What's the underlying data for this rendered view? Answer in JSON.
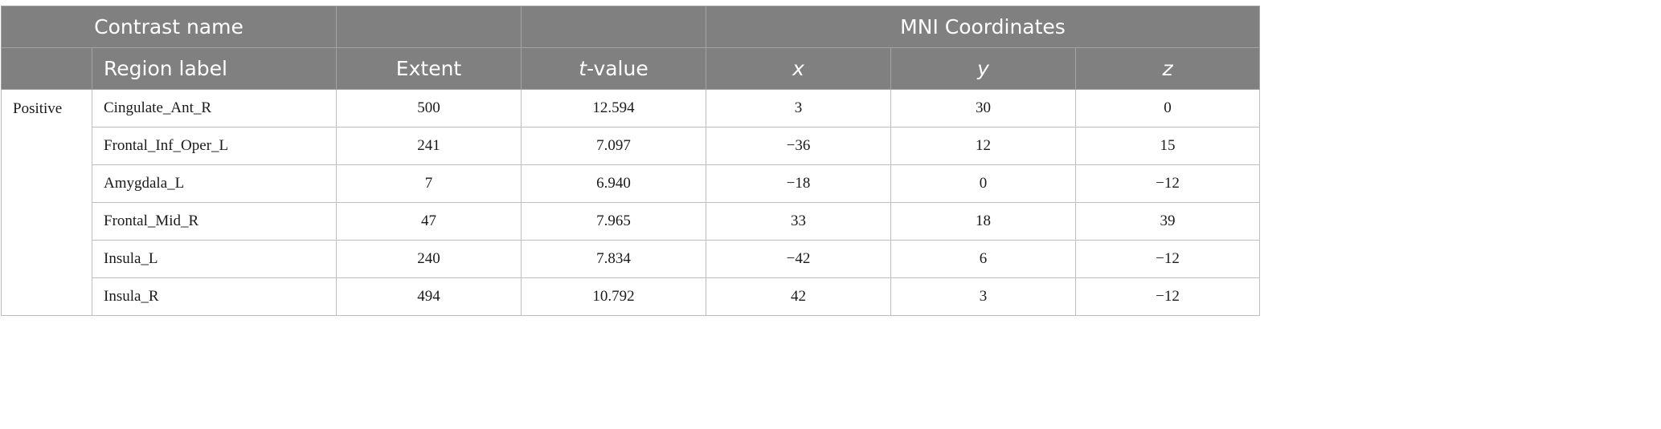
{
  "header": {
    "contrast_name": "Contrast name",
    "mni_coordinates": "MNI Coordinates",
    "region_label": "Region label",
    "extent": "Extent",
    "t_prefix": "t",
    "t_suffix": "-value",
    "x": "x",
    "y": "y",
    "z": "z"
  },
  "group_label": "Positive",
  "rows": [
    {
      "region": "Cingulate_Ant_R",
      "extent": "500",
      "t": "12.594",
      "x": "3",
      "y": "30",
      "z": "0"
    },
    {
      "region": "Frontal_Inf_Oper_L",
      "extent": "241",
      "t": "7.097",
      "x": "−36",
      "y": "12",
      "z": "15"
    },
    {
      "region": "Amygdala_L",
      "extent": "7",
      "t": "6.940",
      "x": "−18",
      "y": "0",
      "z": "−12"
    },
    {
      "region": "Frontal_Mid_R",
      "extent": "47",
      "t": "7.965",
      "x": "33",
      "y": "18",
      "z": "39"
    },
    {
      "region": "Insula_L",
      "extent": "240",
      "t": "7.834",
      "x": "−42",
      "y": "6",
      "z": "−12"
    },
    {
      "region": "Insula_R",
      "extent": "494",
      "t": "10.792",
      "x": "42",
      "y": "3",
      "z": "−12"
    }
  ]
}
